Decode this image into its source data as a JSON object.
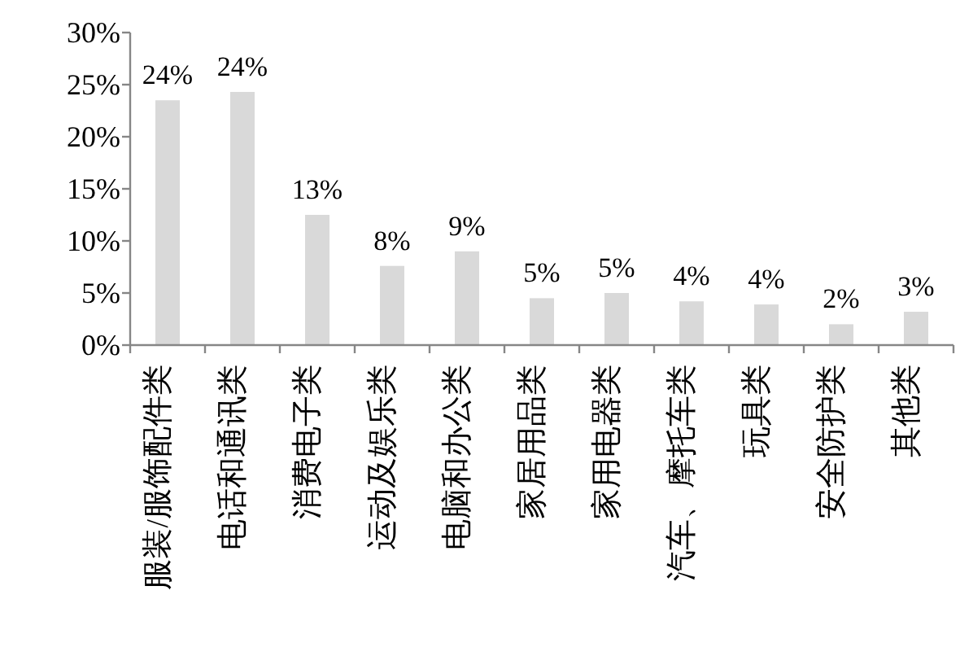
{
  "chart_data": {
    "type": "bar",
    "categories": [
      "服装/服饰配件类",
      "电话和通讯类",
      "消费电子类",
      "运动及娱乐类",
      "电脑和办公类",
      "家居用品类",
      "家用电器类",
      "汽车、摩托车类",
      "玩具类",
      "安全防护类",
      "其他类"
    ],
    "values": [
      23.5,
      24.3,
      12.5,
      7.6,
      9.0,
      4.5,
      5.0,
      4.2,
      3.9,
      2.0,
      3.2
    ],
    "value_labels": [
      "24%",
      "24%",
      "13%",
      "8%",
      "9%",
      "5%",
      "5%",
      "4%",
      "4%",
      "2%",
      "3%"
    ],
    "color": "#d9d9d9",
    "ylim": [
      0,
      30
    ],
    "yticks": [
      {
        "value": 0,
        "label": "0%"
      },
      {
        "value": 5,
        "label": "5%"
      },
      {
        "value": 10,
        "label": "10%"
      },
      {
        "value": 15,
        "label": "15%"
      },
      {
        "value": 20,
        "label": "20%"
      },
      {
        "value": 25,
        "label": "25%"
      },
      {
        "value": 30,
        "label": "30%"
      }
    ]
  }
}
